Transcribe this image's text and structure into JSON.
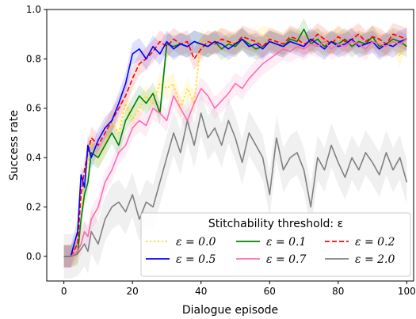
{
  "chart_data": {
    "type": "line",
    "xlabel": "Dialogue episode",
    "ylabel": "Success rate",
    "xlim": [
      -5,
      102
    ],
    "ylim": [
      -0.1,
      1.0
    ],
    "xticks": [
      0,
      20,
      40,
      60,
      80,
      100
    ],
    "yticks": [
      0.0,
      0.2,
      0.4,
      0.6,
      0.8,
      1.0
    ],
    "xtick_labels": [
      "0",
      "20",
      "40",
      "60",
      "80",
      "100"
    ],
    "ytick_labels": [
      "0.0",
      "0.2",
      "0.4",
      "0.6",
      "0.8",
      "1.0"
    ],
    "grid": false,
    "legend": {
      "title": "Stitchability threshold: ε",
      "placement": "lower-right",
      "columns": 3
    },
    "series": [
      {
        "name": "ε = 0.0",
        "color": "#ffd700",
        "style": "dotted",
        "x": [
          0,
          2,
          4,
          5,
          6,
          7,
          8,
          10,
          12,
          14,
          16,
          18,
          20,
          22,
          24,
          26,
          28,
          30,
          32,
          34,
          36,
          38,
          40,
          42,
          44,
          46,
          48,
          50,
          52,
          54,
          56,
          58,
          60,
          62,
          64,
          66,
          68,
          70,
          72,
          74,
          76,
          78,
          80,
          82,
          84,
          86,
          88,
          90,
          92,
          94,
          96,
          98,
          100
        ],
        "y": [
          0.0,
          0.0,
          0.02,
          0.15,
          0.3,
          0.38,
          0.45,
          0.4,
          0.45,
          0.55,
          0.5,
          0.62,
          0.55,
          0.6,
          0.65,
          0.62,
          0.7,
          0.68,
          0.7,
          0.6,
          0.68,
          0.62,
          0.88,
          0.85,
          0.87,
          0.88,
          0.86,
          0.87,
          0.88,
          0.86,
          0.87,
          0.89,
          0.88,
          0.87,
          0.86,
          0.88,
          0.87,
          0.86,
          0.87,
          0.88,
          0.86,
          0.87,
          0.88,
          0.86,
          0.88,
          0.87,
          0.86,
          0.88,
          0.87,
          0.85,
          0.88,
          0.81,
          0.89
        ]
      },
      {
        "name": "ε = 0.1",
        "color": "#008000",
        "style": "solid",
        "x": [
          0,
          2,
          4,
          5,
          6,
          7,
          8,
          10,
          12,
          14,
          16,
          18,
          20,
          22,
          24,
          26,
          28,
          30,
          32,
          34,
          36,
          38,
          40,
          42,
          44,
          46,
          48,
          50,
          52,
          54,
          56,
          58,
          60,
          62,
          64,
          66,
          68,
          70,
          72,
          74,
          76,
          78,
          80,
          82,
          84,
          86,
          88,
          90,
          92,
          94,
          96,
          98,
          100
        ],
        "y": [
          0.0,
          0.0,
          0.01,
          0.15,
          0.25,
          0.3,
          0.42,
          0.4,
          0.45,
          0.5,
          0.45,
          0.55,
          0.6,
          0.65,
          0.62,
          0.66,
          0.58,
          0.86,
          0.85,
          0.86,
          0.85,
          0.87,
          0.86,
          0.85,
          0.87,
          0.84,
          0.86,
          0.85,
          0.88,
          0.86,
          0.84,
          0.85,
          0.87,
          0.86,
          0.85,
          0.88,
          0.87,
          0.92,
          0.86,
          0.88,
          0.85,
          0.87,
          0.86,
          0.88,
          0.85,
          0.87,
          0.86,
          0.89,
          0.85,
          0.86,
          0.88,
          0.87,
          0.85
        ]
      },
      {
        "name": "ε = 0.2",
        "color": "#ff0000",
        "style": "dashed",
        "x": [
          0,
          2,
          4,
          5,
          6,
          7,
          8,
          10,
          12,
          14,
          16,
          18,
          20,
          22,
          24,
          26,
          28,
          30,
          32,
          34,
          36,
          38,
          40,
          42,
          44,
          46,
          48,
          50,
          52,
          54,
          56,
          58,
          60,
          62,
          64,
          66,
          68,
          70,
          72,
          74,
          76,
          78,
          80,
          82,
          84,
          86,
          88,
          90,
          92,
          94,
          96,
          98,
          100
        ],
        "y": [
          0.0,
          0.0,
          0.05,
          0.25,
          0.35,
          0.42,
          0.48,
          0.45,
          0.5,
          0.55,
          0.6,
          0.65,
          0.72,
          0.78,
          0.8,
          0.83,
          0.87,
          0.85,
          0.88,
          0.86,
          0.87,
          0.8,
          0.84,
          0.87,
          0.86,
          0.88,
          0.87,
          0.86,
          0.89,
          0.88,
          0.87,
          0.85,
          0.88,
          0.87,
          0.86,
          0.89,
          0.88,
          0.86,
          0.87,
          0.9,
          0.88,
          0.86,
          0.89,
          0.87,
          0.88,
          0.9,
          0.87,
          0.89,
          0.88,
          0.86,
          0.9,
          0.89,
          0.88
        ]
      },
      {
        "name": "ε = 0.5",
        "color": "#0000ff",
        "style": "solid",
        "x": [
          0,
          2,
          4,
          5,
          6,
          7,
          8,
          10,
          12,
          14,
          16,
          18,
          20,
          22,
          24,
          26,
          28,
          30,
          32,
          34,
          36,
          38,
          40,
          42,
          44,
          46,
          48,
          50,
          52,
          54,
          56,
          58,
          60,
          62,
          64,
          66,
          68,
          70,
          72,
          74,
          76,
          78,
          80,
          82,
          84,
          86,
          88,
          90,
          92,
          94,
          96,
          98,
          100
        ],
        "y": [
          0.0,
          0.0,
          0.1,
          0.33,
          0.28,
          0.45,
          0.4,
          0.47,
          0.52,
          0.55,
          0.62,
          0.7,
          0.82,
          0.84,
          0.8,
          0.85,
          0.82,
          0.87,
          0.84,
          0.86,
          0.85,
          0.87,
          0.86,
          0.85,
          0.87,
          0.86,
          0.84,
          0.86,
          0.88,
          0.85,
          0.86,
          0.84,
          0.87,
          0.86,
          0.85,
          0.87,
          0.86,
          0.85,
          0.88,
          0.86,
          0.84,
          0.87,
          0.85,
          0.86,
          0.88,
          0.85,
          0.86,
          0.87,
          0.84,
          0.86,
          0.85,
          0.87,
          0.88
        ]
      },
      {
        "name": "ε = 0.7",
        "color": "#ff69b4",
        "style": "solid",
        "x": [
          0,
          2,
          4,
          5,
          6,
          7,
          8,
          10,
          12,
          14,
          16,
          18,
          20,
          22,
          24,
          26,
          28,
          30,
          32,
          34,
          36,
          38,
          40,
          42,
          44,
          46,
          48,
          50,
          52,
          54,
          56,
          58,
          60,
          62,
          64,
          66,
          68,
          70,
          72,
          74,
          76,
          78,
          80,
          82,
          84,
          86,
          88,
          90,
          92,
          94,
          96,
          98,
          100
        ],
        "y": [
          0.0,
          0.0,
          0.02,
          0.05,
          0.1,
          0.08,
          0.15,
          0.2,
          0.3,
          0.35,
          0.42,
          0.45,
          0.52,
          0.55,
          0.53,
          0.6,
          0.58,
          0.55,
          0.65,
          0.6,
          0.55,
          0.62,
          0.68,
          0.65,
          0.6,
          0.63,
          0.66,
          0.7,
          0.68,
          0.72,
          0.75,
          0.78,
          0.8,
          0.82,
          0.84,
          0.83,
          0.85,
          0.84,
          0.86,
          0.85,
          0.87,
          0.84,
          0.86,
          0.85,
          0.87,
          0.86,
          0.84,
          0.87,
          0.86,
          0.85,
          0.87,
          0.86,
          0.88
        ]
      },
      {
        "name": "ε = 2.0",
        "color": "#808080",
        "style": "solid",
        "x": [
          0,
          2,
          4,
          5,
          6,
          7,
          8,
          10,
          12,
          14,
          16,
          18,
          20,
          22,
          24,
          26,
          28,
          30,
          32,
          34,
          36,
          38,
          40,
          42,
          44,
          46,
          48,
          50,
          52,
          54,
          56,
          58,
          60,
          62,
          64,
          66,
          68,
          70,
          72,
          74,
          76,
          78,
          80,
          82,
          84,
          86,
          88,
          90,
          92,
          94,
          96,
          98,
          100
        ],
        "y": [
          0.0,
          0.0,
          0.01,
          0.03,
          0.05,
          0.02,
          0.1,
          0.05,
          0.15,
          0.2,
          0.22,
          0.18,
          0.25,
          0.15,
          0.22,
          0.2,
          0.3,
          0.4,
          0.5,
          0.42,
          0.55,
          0.45,
          0.58,
          0.48,
          0.52,
          0.45,
          0.55,
          0.48,
          0.38,
          0.5,
          0.45,
          0.4,
          0.25,
          0.48,
          0.35,
          0.4,
          0.42,
          0.35,
          0.2,
          0.4,
          0.35,
          0.45,
          0.38,
          0.32,
          0.4,
          0.35,
          0.42,
          0.38,
          0.33,
          0.42,
          0.35,
          0.4,
          0.3
        ]
      }
    ]
  }
}
